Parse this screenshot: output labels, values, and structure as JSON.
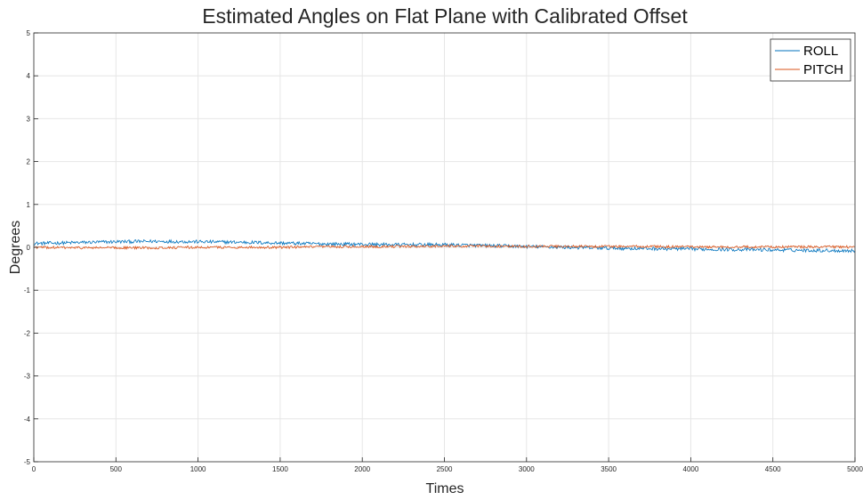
{
  "chart_data": {
    "type": "line",
    "title": "Estimated Angles on Flat Plane with Calibrated Offset",
    "xlabel": "Times",
    "ylabel": "Degrees",
    "xlim": [
      0,
      5000
    ],
    "ylim": [
      -5,
      5
    ],
    "xticks": [
      0,
      500,
      1000,
      1500,
      2000,
      2500,
      3000,
      3500,
      4000,
      4500,
      5000
    ],
    "yticks": [
      -5,
      -4,
      -3,
      -2,
      -1,
      0,
      1,
      2,
      3,
      4,
      5
    ],
    "grid": true,
    "legend_position": "top-right",
    "series": [
      {
        "name": "ROLL",
        "color": "#0072BD",
        "noise": 0.04,
        "trend_x": [
          0,
          250,
          500,
          750,
          1000,
          1250,
          1500,
          1750,
          2000,
          2250,
          2500,
          2750,
          3000,
          3250,
          3500,
          3750,
          4000,
          4250,
          4500,
          4750,
          5000
        ],
        "trend_y": [
          0.09,
          0.11,
          0.13,
          0.14,
          0.13,
          0.12,
          0.1,
          0.08,
          0.07,
          0.06,
          0.06,
          0.04,
          0.02,
          0.0,
          -0.02,
          -0.03,
          -0.04,
          -0.05,
          -0.06,
          -0.07,
          -0.08
        ]
      },
      {
        "name": "PITCH",
        "color": "#D95319",
        "noise": 0.03,
        "trend_x": [
          0,
          250,
          500,
          750,
          1000,
          1250,
          1500,
          1750,
          2000,
          2250,
          2500,
          2750,
          3000,
          3250,
          3500,
          3750,
          4000,
          4250,
          4500,
          4750,
          5000
        ],
        "trend_y": [
          0.0,
          -0.01,
          -0.01,
          -0.01,
          0.0,
          0.0,
          0.0,
          0.01,
          0.02,
          0.02,
          0.03,
          0.03,
          0.02,
          0.02,
          0.02,
          0.02,
          0.01,
          0.01,
          0.01,
          0.01,
          0.01
        ]
      }
    ]
  }
}
